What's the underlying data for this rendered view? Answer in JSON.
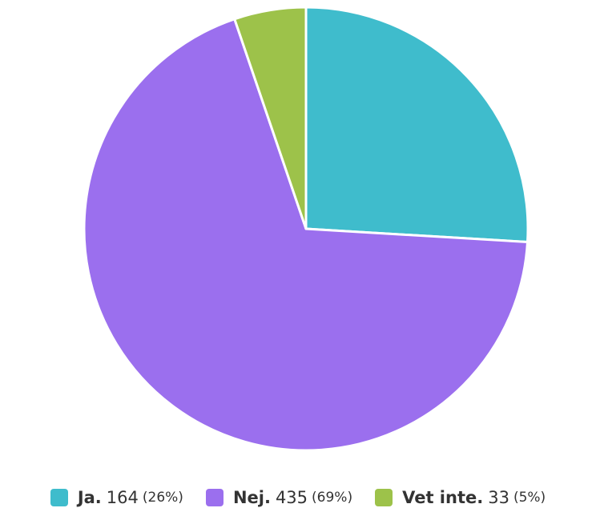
{
  "chart_data": {
    "type": "pie",
    "categories": [
      "Ja.",
      "Nej.",
      "Vet inte."
    ],
    "values": [
      164,
      435,
      33
    ],
    "shares": [
      "(26%)",
      "(69%)",
      "(5%)"
    ],
    "colors": [
      "#3fbccc",
      "#9b6fee",
      "#9dc24a"
    ],
    "legend": "bottom"
  }
}
